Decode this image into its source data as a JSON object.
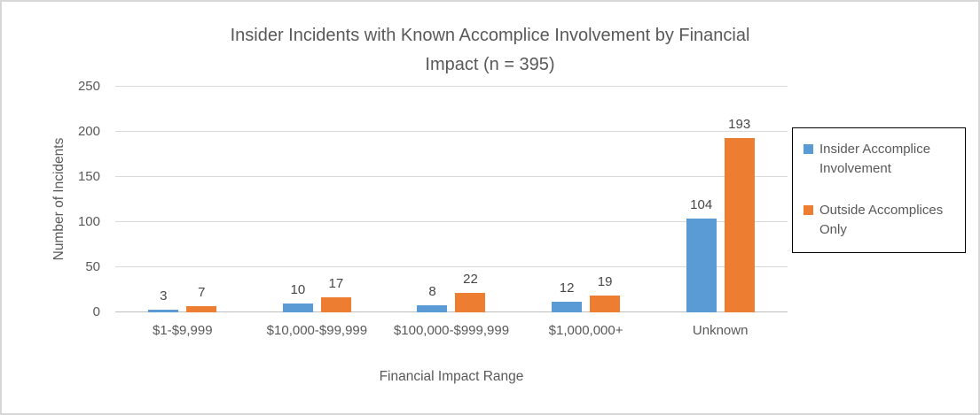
{
  "title": {
    "line1": "Insider Incidents with Known Accomplice Involvement by Financial",
    "line2": "Impact (n = 395)"
  },
  "chart_data": {
    "type": "bar",
    "title": "Insider Incidents with Known Accomplice Involvement by Financial Impact (n = 395)",
    "categories": [
      "$1-$9,999",
      "$10,000-$99,999",
      "$100,000-$999,999",
      "$1,000,000+",
      "Unknown"
    ],
    "series": [
      {
        "name": "Insider Accomplice Involvement",
        "color": "#5B9BD5",
        "values": [
          3,
          10,
          8,
          12,
          104
        ]
      },
      {
        "name": "Outside Accomplices Only",
        "color": "#ED7D31",
        "values": [
          7,
          17,
          22,
          19,
          193
        ]
      }
    ],
    "xlabel": "Financial Impact Range",
    "ylabel": "Number of Incidents",
    "ylim": [
      0,
      250
    ],
    "yticks": [
      0,
      50,
      100,
      150,
      200,
      250
    ],
    "grid": true,
    "legend_position": "right",
    "colors": {
      "gridline": "#D9D9D9",
      "axis": "#BFBFBF",
      "text": "#595959"
    }
  }
}
